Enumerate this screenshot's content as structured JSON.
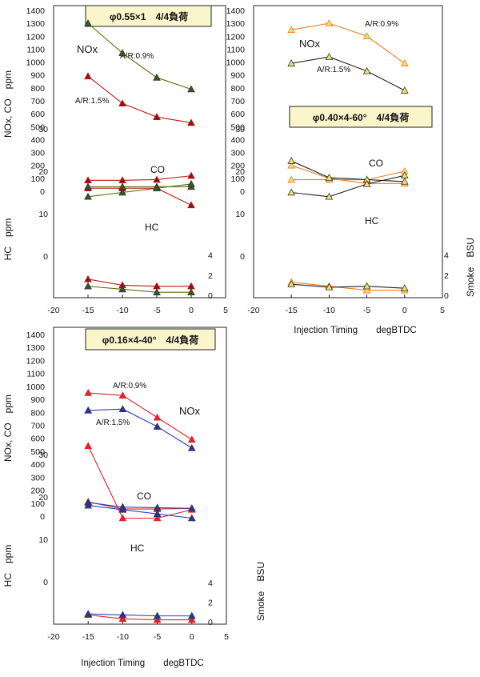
{
  "colors": {
    "panel1": {
      "s0": "#c21717",
      "s1": "#5e6f10",
      "marker0": "#8a1616",
      "marker1": "#2e5e1c"
    },
    "panel2": {
      "s0": "#f07a20",
      "s1": "#222222",
      "marker": "#eee070"
    },
    "panel3": {
      "s0": "#e4202a",
      "s1": "#2f40b0",
      "marker0": "#e4202a",
      "marker1": "#2833a8"
    },
    "title_box_fill": "#fbf5cc"
  },
  "chart_data": [
    {
      "type": "line",
      "title": "φ0.55×1　4/4負荷",
      "xlabel": "",
      "ylabel_nox_co": "NOx, CO　ppm",
      "ylabel_hc": "HC　ppm",
      "ylabel_smoke": "",
      "x_ticks": [
        "-20",
        "-15",
        "-10",
        "-5",
        "0",
        "5"
      ],
      "xlim": [
        -20,
        5
      ],
      "nox_co_ticks": [
        "0",
        "100",
        "200",
        "300",
        "400",
        "500",
        "600",
        "700",
        "800",
        "900",
        "1000",
        "1100",
        "1200",
        "1300",
        "1400"
      ],
      "hc_ticks": [
        "0",
        "10",
        "20",
        "30"
      ],
      "smoke_ticks": [
        "0",
        "2",
        "4"
      ],
      "annotations": {
        "nox": "NOx",
        "co": "CO",
        "hc": "HC",
        "ar_a": "A/R:0.9%",
        "ar_b": "A/R:1.5%"
      },
      "x": [
        -15,
        -10,
        -5,
        0
      ],
      "series": [
        {
          "nox": [
            890,
            680,
            575,
            530
          ],
          "co": [
            85,
            85,
            90,
            120
          ],
          "hc": [
            16,
            16,
            16,
            12
          ],
          "smoke": [
            1.6,
            1.0,
            0.9,
            0.9
          ]
        },
        {
          "nox": [
            1300,
            1070,
            880,
            790
          ],
          "co": [
            35,
            35,
            35,
            35
          ],
          "hc": [
            14,
            15,
            16,
            17
          ],
          "smoke": [
            0.9,
            0.6,
            0.3,
            0.3
          ]
        }
      ]
    },
    {
      "type": "line",
      "title": "φ0.40×4-60°　4/4負荷",
      "xlabel": "Injection Timing　　degBTDC",
      "ylabel_nox_co": "",
      "ylabel_hc": "",
      "ylabel_smoke": "Smoke　BSU",
      "x_ticks": [
        "-20",
        "-15",
        "-10",
        "-5",
        "0",
        "5"
      ],
      "xlim": [
        -20,
        5
      ],
      "nox_co_ticks": [
        "0",
        "100",
        "200",
        "300",
        "400",
        "500",
        "600",
        "700",
        "800",
        "900",
        "1000",
        "1100",
        "1200",
        "1300",
        "1400"
      ],
      "hc_ticks": [
        "0",
        "10",
        "20",
        "30"
      ],
      "smoke_ticks": [
        "0",
        "2",
        "4"
      ],
      "annotations": {
        "nox": "NOx",
        "co": "CO",
        "hc": "HC",
        "ar_a": "A/R:0.9%",
        "ar_b": "A/R:1.5%"
      },
      "x": [
        -15,
        -10,
        -5,
        0
      ],
      "series": [
        {
          "nox": [
            1250,
            1300,
            1200,
            990
          ],
          "co": [
            200,
            100,
            60,
            60
          ],
          "hc": [
            18,
            18,
            18,
            20
          ],
          "smoke": [
            1.3,
            0.9,
            0.5,
            0.5
          ]
        },
        {
          "nox": [
            990,
            1040,
            930,
            780
          ],
          "co": [
            235,
            105,
            90,
            75
          ],
          "hc": [
            15,
            14,
            17,
            19
          ],
          "smoke": [
            1.1,
            0.8,
            0.9,
            0.7
          ]
        }
      ]
    },
    {
      "type": "line",
      "title": "φ0.16×4-40°　4/4負荷",
      "xlabel": "Injection Timing　　degBTDC",
      "ylabel_nox_co": "NOx, CO　ppm",
      "ylabel_hc": "HC　ppm",
      "ylabel_smoke": "Smoke　BSU",
      "x_ticks": [
        "-20",
        "-15",
        "-10",
        "-5",
        "0",
        "5"
      ],
      "xlim": [
        -20,
        5
      ],
      "nox_co_ticks": [
        "0",
        "100",
        "200",
        "300",
        "400",
        "500",
        "600",
        "700",
        "800",
        "900",
        "1000",
        "1100",
        "1200",
        "1300",
        "1400"
      ],
      "hc_ticks": [
        "0",
        "10",
        "20",
        "30"
      ],
      "smoke_ticks": [
        "0",
        "2",
        "4"
      ],
      "annotations": {
        "nox": "NOx",
        "co": "CO",
        "hc": "HC",
        "ar_a": "A/R:0.9%",
        "ar_b": "A/R:1.5%"
      },
      "x": [
        -15,
        -10,
        -5,
        0
      ],
      "series": [
        {
          "nox": [
            950,
            930,
            760,
            590
          ],
          "co": [
            110,
            55,
            55,
            60
          ],
          "hc": [
            32,
            15,
            15,
            17
          ],
          "smoke": [
            0.7,
            0.3,
            0.2,
            0.2
          ]
        },
        {
          "nox": [
            815,
            825,
            690,
            525
          ],
          "co": [
            105,
            70,
            65,
            60
          ],
          "hc": [
            18,
            17,
            16,
            15
          ],
          "smoke": [
            0.8,
            0.7,
            0.6,
            0.6
          ]
        }
      ]
    }
  ]
}
